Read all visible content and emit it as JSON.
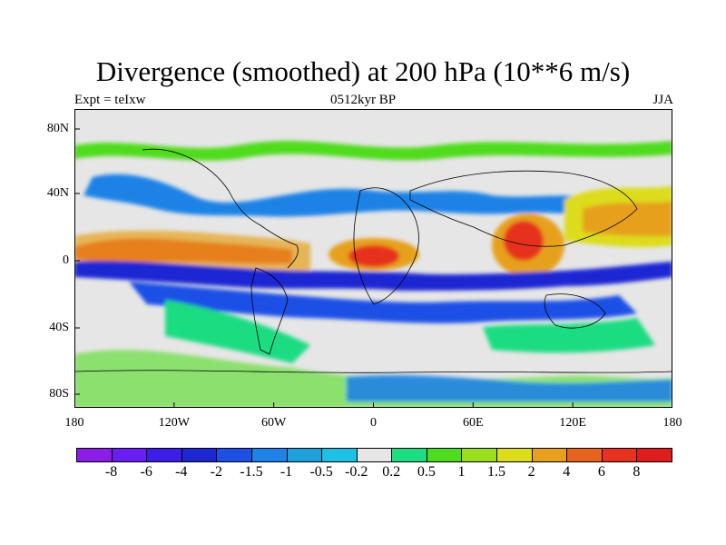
{
  "title": "Divergence (smoothed) at 200 hPa (10**6 m/s)",
  "subtitle_left": "Expt = teIxw",
  "subtitle_center": "0512kyr BP",
  "subtitle_right": "JJA",
  "map": {
    "lat_ticks": [
      "80N",
      "40N",
      "0",
      "40S",
      "80S"
    ],
    "lon_ticks": [
      "180",
      "120W",
      "60W",
      "0",
      "60E",
      "120E",
      "180"
    ]
  },
  "colorbar": {
    "colors": [
      "#8a1ee6",
      "#6a1ef0",
      "#3c1ee6",
      "#1e28d2",
      "#1e50e6",
      "#1e82e6",
      "#1ea0dc",
      "#1ec0e6",
      "#e6e6e6",
      "#1edc82",
      "#50dc1e",
      "#9adc1e",
      "#dcdc1e",
      "#e6a01e",
      "#e6641e",
      "#e6321e",
      "#dc1e1e"
    ],
    "labels": [
      "-8",
      "-6",
      "-4",
      "-2",
      "-1.5",
      "-1",
      "-0.5",
      "-0.2",
      "0.2",
      "0.5",
      "1",
      "1.5",
      "2",
      "4",
      "6",
      "8"
    ]
  }
}
